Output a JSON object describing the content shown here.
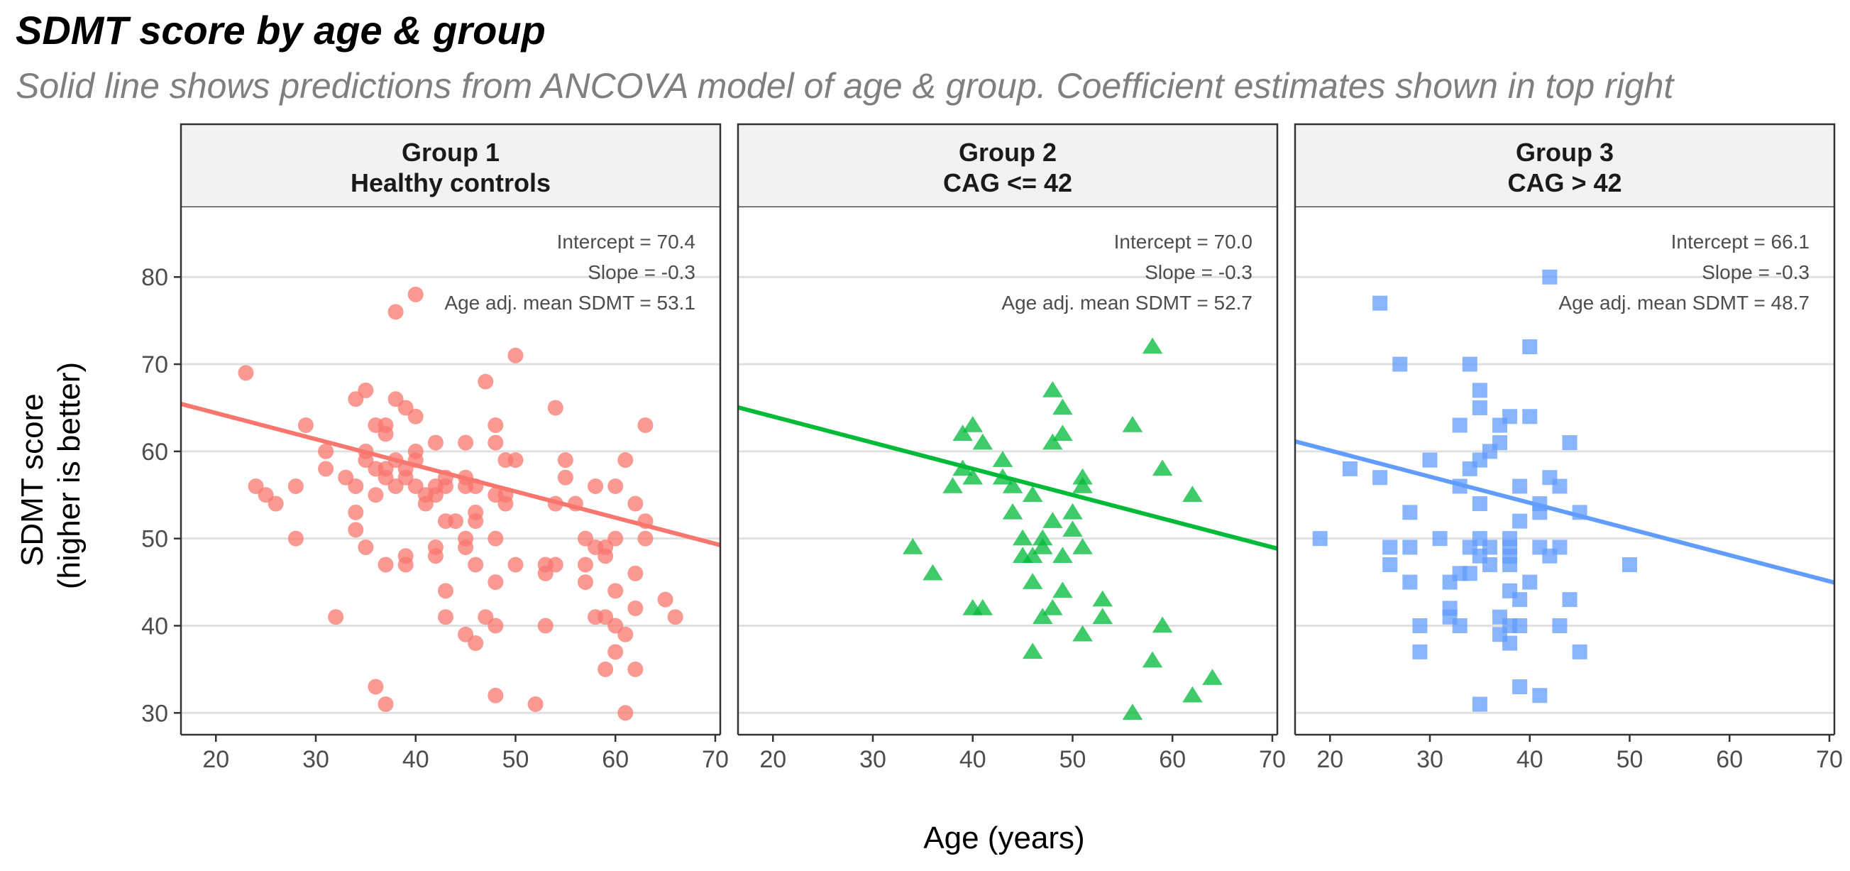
{
  "title": "SDMT score by age & group",
  "subtitle": "Solid line shows predictions from ANCOVA model of age & group. Coefficient estimates shown in top right",
  "chart_data": {
    "type": "scatter",
    "xlabel": "Age (years)",
    "ylabel": [
      "SDMT score",
      "(higher is better)"
    ],
    "xlim": [
      16.5,
      70.5
    ],
    "ylim": [
      27.5,
      88
    ],
    "xticks": [
      20,
      30,
      40,
      50,
      60,
      70
    ],
    "yticks": [
      30,
      40,
      50,
      60,
      70,
      80
    ],
    "grid": "horizontal",
    "legend": "none",
    "panels": [
      {
        "strip": [
          "Group 1",
          "Healthy controls"
        ],
        "color": "#F8766D",
        "marker": "circle",
        "annotations": [
          "Intercept = 70.4",
          "Slope = -0.3",
          "Age adj. mean SDMT = 53.1"
        ],
        "fit": {
          "intercept": 70.4,
          "slope": -0.3
        },
        "points": [
          [
            23,
            69
          ],
          [
            24,
            56
          ],
          [
            25,
            55
          ],
          [
            26,
            54
          ],
          [
            28,
            50
          ],
          [
            28,
            56
          ],
          [
            29,
            63
          ],
          [
            31,
            60
          ],
          [
            31,
            58
          ],
          [
            32,
            41
          ],
          [
            33,
            57
          ],
          [
            34,
            66
          ],
          [
            34,
            56
          ],
          [
            34,
            53
          ],
          [
            34,
            51
          ],
          [
            35,
            67
          ],
          [
            35,
            60
          ],
          [
            35,
            59
          ],
          [
            35,
            49
          ],
          [
            36,
            63
          ],
          [
            36,
            58
          ],
          [
            36,
            55
          ],
          [
            36,
            33
          ],
          [
            37,
            63
          ],
          [
            37,
            62
          ],
          [
            37,
            58
          ],
          [
            37,
            57
          ],
          [
            37,
            47
          ],
          [
            37,
            31
          ],
          [
            38,
            76
          ],
          [
            38,
            66
          ],
          [
            38,
            59
          ],
          [
            38,
            56
          ],
          [
            39,
            65
          ],
          [
            39,
            58
          ],
          [
            39,
            57
          ],
          [
            39,
            48
          ],
          [
            39,
            47
          ],
          [
            40,
            78
          ],
          [
            40,
            64
          ],
          [
            40,
            60
          ],
          [
            40,
            59
          ],
          [
            40,
            56
          ],
          [
            41,
            55
          ],
          [
            41,
            54
          ],
          [
            42,
            61
          ],
          [
            42,
            56
          ],
          [
            42,
            55
          ],
          [
            42,
            49
          ],
          [
            42,
            48
          ],
          [
            43,
            57
          ],
          [
            43,
            56
          ],
          [
            43,
            52
          ],
          [
            43,
            44
          ],
          [
            43,
            41
          ],
          [
            44,
            52
          ],
          [
            45,
            61
          ],
          [
            45,
            57
          ],
          [
            45,
            56
          ],
          [
            45,
            50
          ],
          [
            45,
            49
          ],
          [
            45,
            39
          ],
          [
            46,
            56
          ],
          [
            46,
            53
          ],
          [
            46,
            52
          ],
          [
            46,
            47
          ],
          [
            46,
            38
          ],
          [
            47,
            68
          ],
          [
            47,
            41
          ],
          [
            48,
            63
          ],
          [
            48,
            61
          ],
          [
            48,
            55
          ],
          [
            48,
            50
          ],
          [
            48,
            45
          ],
          [
            48,
            40
          ],
          [
            48,
            32
          ],
          [
            49,
            59
          ],
          [
            49,
            55
          ],
          [
            49,
            54
          ],
          [
            50,
            71
          ],
          [
            50,
            59
          ],
          [
            50,
            47
          ],
          [
            52,
            31
          ],
          [
            53,
            46
          ],
          [
            53,
            47
          ],
          [
            53,
            40
          ],
          [
            54,
            65
          ],
          [
            54,
            54
          ],
          [
            54,
            47
          ],
          [
            55,
            59
          ],
          [
            55,
            57
          ],
          [
            56,
            54
          ],
          [
            57,
            50
          ],
          [
            57,
            47
          ],
          [
            57,
            45
          ],
          [
            58,
            56
          ],
          [
            58,
            49
          ],
          [
            58,
            41
          ],
          [
            59,
            49
          ],
          [
            59,
            48
          ],
          [
            59,
            41
          ],
          [
            59,
            35
          ],
          [
            60,
            56
          ],
          [
            60,
            50
          ],
          [
            60,
            44
          ],
          [
            60,
            40
          ],
          [
            60,
            37
          ],
          [
            61,
            59
          ],
          [
            61,
            39
          ],
          [
            61,
            30
          ],
          [
            62,
            54
          ],
          [
            62,
            46
          ],
          [
            62,
            42
          ],
          [
            62,
            35
          ],
          [
            63,
            63
          ],
          [
            63,
            52
          ],
          [
            63,
            50
          ],
          [
            65,
            43
          ],
          [
            66,
            41
          ]
        ]
      },
      {
        "strip": [
          "Group 2",
          "CAG <= 42"
        ],
        "color": "#00BA38",
        "marker": "triangle",
        "annotations": [
          "Intercept = 70.0",
          "Slope = -0.3",
          "Age adj. mean SDMT = 52.7"
        ],
        "fit": {
          "intercept": 70.0,
          "slope": -0.3
        },
        "points": [
          [
            34,
            49
          ],
          [
            36,
            46
          ],
          [
            38,
            56
          ],
          [
            39,
            62
          ],
          [
            39,
            58
          ],
          [
            40,
            63
          ],
          [
            40,
            57
          ],
          [
            40,
            42
          ],
          [
            41,
            61
          ],
          [
            41,
            42
          ],
          [
            43,
            59
          ],
          [
            43,
            57
          ],
          [
            44,
            56
          ],
          [
            44,
            53
          ],
          [
            45,
            50
          ],
          [
            45,
            48
          ],
          [
            46,
            55
          ],
          [
            46,
            48
          ],
          [
            46,
            45
          ],
          [
            46,
            37
          ],
          [
            47,
            50
          ],
          [
            47,
            49
          ],
          [
            47,
            41
          ],
          [
            48,
            67
          ],
          [
            48,
            61
          ],
          [
            48,
            52
          ],
          [
            48,
            42
          ],
          [
            49,
            65
          ],
          [
            49,
            62
          ],
          [
            49,
            48
          ],
          [
            49,
            44
          ],
          [
            50,
            53
          ],
          [
            50,
            51
          ],
          [
            51,
            57
          ],
          [
            51,
            56
          ],
          [
            51,
            49
          ],
          [
            51,
            39
          ],
          [
            53,
            43
          ],
          [
            53,
            41
          ],
          [
            56,
            63
          ],
          [
            56,
            30
          ],
          [
            58,
            72
          ],
          [
            58,
            36
          ],
          [
            59,
            58
          ],
          [
            59,
            40
          ],
          [
            62,
            55
          ],
          [
            62,
            32
          ],
          [
            64,
            34
          ]
        ]
      },
      {
        "strip": [
          "Group 3",
          "CAG > 42"
        ],
        "color": "#619CFF",
        "marker": "square",
        "annotations": [
          "Intercept = 66.1",
          "Slope = -0.3",
          "Age adj. mean SDMT = 48.7"
        ],
        "fit": {
          "intercept": 66.1,
          "slope": -0.3
        },
        "points": [
          [
            19,
            50
          ],
          [
            22,
            58
          ],
          [
            25,
            77
          ],
          [
            25,
            57
          ],
          [
            26,
            49
          ],
          [
            26,
            47
          ],
          [
            27,
            70
          ],
          [
            28,
            53
          ],
          [
            28,
            49
          ],
          [
            28,
            45
          ],
          [
            29,
            40
          ],
          [
            29,
            37
          ],
          [
            30,
            59
          ],
          [
            31,
            50
          ],
          [
            32,
            45
          ],
          [
            32,
            42
          ],
          [
            32,
            41
          ],
          [
            33,
            63
          ],
          [
            33,
            56
          ],
          [
            33,
            46
          ],
          [
            33,
            40
          ],
          [
            34,
            70
          ],
          [
            34,
            58
          ],
          [
            34,
            49
          ],
          [
            34,
            46
          ],
          [
            35,
            67
          ],
          [
            35,
            65
          ],
          [
            35,
            59
          ],
          [
            35,
            54
          ],
          [
            35,
            50
          ],
          [
            35,
            48
          ],
          [
            35,
            31
          ],
          [
            36,
            60
          ],
          [
            36,
            49
          ],
          [
            36,
            47
          ],
          [
            37,
            63
          ],
          [
            37,
            61
          ],
          [
            37,
            41
          ],
          [
            37,
            39
          ],
          [
            38,
            64
          ],
          [
            38,
            50
          ],
          [
            38,
            49
          ],
          [
            38,
            48
          ],
          [
            38,
            47
          ],
          [
            38,
            44
          ],
          [
            38,
            40
          ],
          [
            38,
            38
          ],
          [
            39,
            56
          ],
          [
            39,
            52
          ],
          [
            39,
            43
          ],
          [
            39,
            40
          ],
          [
            39,
            33
          ],
          [
            40,
            72
          ],
          [
            40,
            64
          ],
          [
            40,
            45
          ],
          [
            41,
            54
          ],
          [
            41,
            53
          ],
          [
            41,
            49
          ],
          [
            41,
            32
          ],
          [
            42,
            80
          ],
          [
            42,
            57
          ],
          [
            42,
            48
          ],
          [
            43,
            56
          ],
          [
            43,
            49
          ],
          [
            43,
            40
          ],
          [
            44,
            61
          ],
          [
            44,
            43
          ],
          [
            45,
            53
          ],
          [
            45,
            37
          ],
          [
            50,
            47
          ]
        ]
      }
    ]
  }
}
